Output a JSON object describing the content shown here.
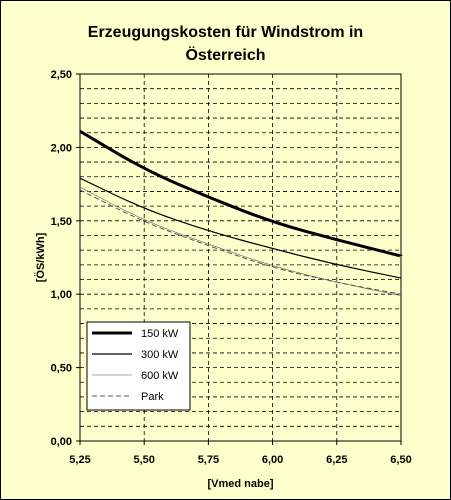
{
  "chart_data": {
    "type": "line",
    "title_line1": "Erzeugungskosten für Windstrom in",
    "title_line2": "Österreich",
    "xlabel": "[Vmed nabe]",
    "ylabel": "[ÖS/kWh]",
    "xlim": [
      5.25,
      6.5
    ],
    "ylim": [
      0,
      2.5
    ],
    "x_ticks": [
      5.25,
      5.5,
      5.75,
      6.0,
      6.25,
      6.5
    ],
    "x_tick_labels": [
      "5,25",
      "5,50",
      "5,75",
      "6,00",
      "6,25",
      "6,50"
    ],
    "y_ticks": [
      0,
      0.5,
      1.0,
      1.5,
      2.0,
      2.5
    ],
    "y_tick_labels": [
      "0,00",
      "0,50",
      "1,00",
      "1,50",
      "2,00",
      "2,50"
    ],
    "grid": true,
    "legend_position": "bottom-left",
    "x": [
      5.25,
      5.5,
      5.75,
      6.0,
      6.25,
      6.5
    ],
    "series": [
      {
        "name": "150 kW",
        "values": [
          2.11,
          1.85,
          1.66,
          1.49,
          1.37,
          1.26
        ],
        "color": "#000000",
        "style": "thick"
      },
      {
        "name": "300 kW",
        "values": [
          1.79,
          1.58,
          1.43,
          1.31,
          1.2,
          1.11
        ],
        "color": "#000000",
        "style": "solid"
      },
      {
        "name": "600 kW",
        "values": [
          1.73,
          1.5,
          1.34,
          1.19,
          1.08,
          0.99
        ],
        "color": "#808080",
        "style": "thin"
      },
      {
        "name": "Park",
        "values": [
          1.71,
          1.49,
          1.33,
          1.18,
          1.08,
          1.0
        ],
        "color": "#555555",
        "style": "dashed"
      }
    ]
  }
}
